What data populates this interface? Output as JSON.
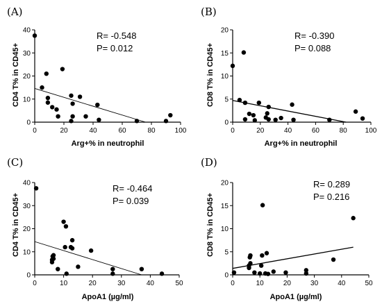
{
  "chart_data": [
    {
      "type": "scatter",
      "panel": "(A)",
      "xlabel": "Arg+% in neutrophil",
      "ylabel": "CD4 T% in CD45+",
      "xlim": [
        0,
        100
      ],
      "ylim": [
        0,
        40
      ],
      "xticks": [
        "0",
        "20",
        "40",
        "60",
        "80",
        "100"
      ],
      "yticks": [
        "0",
        "10",
        "20",
        "30",
        "40"
      ],
      "stat_r": "R= -0.548",
      "stat_p": "P= 0.012",
      "points": [
        [
          0,
          37.5
        ],
        [
          5,
          15
        ],
        [
          8,
          21
        ],
        [
          9,
          10.5
        ],
        [
          9,
          8.5
        ],
        [
          12,
          6.5
        ],
        [
          15,
          5.5
        ],
        [
          16,
          2.5
        ],
        [
          19,
          23
        ],
        [
          25,
          11.5
        ],
        [
          26,
          8
        ],
        [
          26,
          2.5
        ],
        [
          25,
          0.5
        ],
        [
          31,
          11
        ],
        [
          35,
          2.5
        ],
        [
          43,
          7.5
        ],
        [
          44,
          1
        ],
        [
          70,
          0.5
        ],
        [
          90,
          0.5
        ],
        [
          93,
          3
        ]
      ],
      "fit": [
        [
          0,
          14.6
        ],
        [
          76,
          0
        ]
      ]
    },
    {
      "type": "scatter",
      "panel": "(B)",
      "xlabel": "Arg+% in neutrophil",
      "ylabel": "CD8 T% in CD45+",
      "xlim": [
        0,
        100
      ],
      "ylim": [
        0,
        20
      ],
      "xticks": [
        "0",
        "20",
        "40",
        "60",
        "80",
        "100"
      ],
      "yticks": [
        "0",
        "5",
        "10",
        "15",
        "20"
      ],
      "stat_r": "R= -0.390",
      "stat_p": "P= 0.088",
      "points": [
        [
          0,
          12.2
        ],
        [
          5,
          4.8
        ],
        [
          8,
          15.1
        ],
        [
          9,
          4.2
        ],
        [
          9,
          0.6
        ],
        [
          12,
          1.8
        ],
        [
          15,
          1.5
        ],
        [
          16,
          0.4
        ],
        [
          19,
          4.2
        ],
        [
          24,
          1
        ],
        [
          25,
          1.9
        ],
        [
          26,
          3.3
        ],
        [
          26,
          0.6
        ],
        [
          31,
          0.5
        ],
        [
          35,
          0.9
        ],
        [
          43,
          3.8
        ],
        [
          44,
          0.5
        ],
        [
          70,
          0.5
        ],
        [
          89,
          2.3
        ],
        [
          94,
          0.8
        ]
      ],
      "fit": [
        [
          0,
          4.7
        ],
        [
          82,
          0
        ]
      ]
    },
    {
      "type": "scatter",
      "panel": "(C)",
      "xlabel": "ApoA1 (µg/ml)",
      "ylabel": "CD4 T% in CD45+",
      "xlim": [
        0,
        50
      ],
      "ylim": [
        0,
        40
      ],
      "xticks": [
        "0",
        "10",
        "20",
        "30",
        "40",
        "50"
      ],
      "yticks": [
        "0",
        "10",
        "20",
        "30",
        "40"
      ],
      "stat_r": "R= -0.464",
      "stat_p": "P= 0.039",
      "points": [
        [
          0.5,
          37.5
        ],
        [
          6,
          5.5
        ],
        [
          6,
          6.5
        ],
        [
          6.2,
          8
        ],
        [
          6.5,
          7
        ],
        [
          6.5,
          8.5
        ],
        [
          8,
          2.5
        ],
        [
          10,
          23
        ],
        [
          10.5,
          12
        ],
        [
          10.8,
          21
        ],
        [
          11,
          0.5
        ],
        [
          12.5,
          12
        ],
        [
          13,
          11.5
        ],
        [
          13,
          15
        ],
        [
          15,
          3.5
        ],
        [
          19.5,
          10.5
        ],
        [
          27,
          2.5
        ],
        [
          27,
          0.5
        ],
        [
          37,
          2.5
        ],
        [
          44,
          0.5
        ]
      ],
      "fit": [
        [
          0,
          14.4
        ],
        [
          37,
          0
        ]
      ]
    },
    {
      "type": "scatter",
      "panel": "(D)",
      "xlabel": "ApoA1 (µg/ml)",
      "ylabel": "CD8 T% in CD45+",
      "xlim": [
        0,
        50
      ],
      "ylim": [
        0,
        20
      ],
      "xticks": [
        "0",
        "10",
        "20",
        "30",
        "40",
        "50"
      ],
      "yticks": [
        "0",
        "5",
        "10",
        "15",
        "20"
      ],
      "stat_r": "R= 0.289",
      "stat_p": "P= 0.216",
      "points": [
        [
          0.5,
          0.5
        ],
        [
          6,
          1.5
        ],
        [
          6,
          2
        ],
        [
          6.3,
          3.8
        ],
        [
          6.5,
          4.2
        ],
        [
          6.5,
          2.5
        ],
        [
          8,
          0.5
        ],
        [
          10,
          0.3
        ],
        [
          10.5,
          2
        ],
        [
          10.8,
          4.2
        ],
        [
          11,
          15.1
        ],
        [
          12,
          0.3
        ],
        [
          12.5,
          4.7
        ],
        [
          13,
          0.2
        ],
        [
          15,
          0.7
        ],
        [
          19.5,
          0.5
        ],
        [
          27,
          1
        ],
        [
          27,
          0.3
        ],
        [
          37,
          3.3
        ],
        [
          44.3,
          12.3
        ]
      ],
      "fit": [
        [
          0,
          1.4
        ],
        [
          44.3,
          6.0
        ]
      ]
    }
  ]
}
